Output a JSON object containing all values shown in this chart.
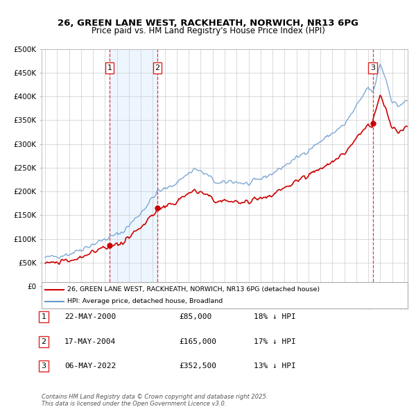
{
  "title": "26, GREEN LANE WEST, RACKHEATH, NORWICH, NR13 6PG",
  "subtitle": "Price paid vs. HM Land Registry's House Price Index (HPI)",
  "legend_label_red": "26, GREEN LANE WEST, RACKHEATH, NORWICH, NR13 6PG (detached house)",
  "legend_label_blue": "HPI: Average price, detached house, Broadland",
  "footer": "Contains HM Land Registry data © Crown copyright and database right 2025.\nThis data is licensed under the Open Government Licence v3.0.",
  "transactions": [
    {
      "num": 1,
      "date": "22-MAY-2000",
      "price": 85000,
      "hpi_diff": "18% ↓ HPI"
    },
    {
      "num": 2,
      "date": "17-MAY-2004",
      "price": 165000,
      "hpi_diff": "17% ↓ HPI"
    },
    {
      "num": 3,
      "date": "06-MAY-2022",
      "price": 352500,
      "hpi_diff": "13% ↓ HPI"
    }
  ],
  "red_color": "#cc0000",
  "blue_color": "#6699cc",
  "blue_fill_color": "#ddeeff",
  "vline_color": "#dd2222",
  "shade_color": "#ddeeff",
  "ylim": [
    0,
    500000
  ],
  "yticks": [
    0,
    50000,
    100000,
    150000,
    200000,
    250000,
    300000,
    350000,
    400000,
    450000,
    500000
  ],
  "sale_years": [
    2000.375,
    2004.375,
    2022.375
  ],
  "sale_prices": [
    85000,
    165000,
    352500
  ]
}
